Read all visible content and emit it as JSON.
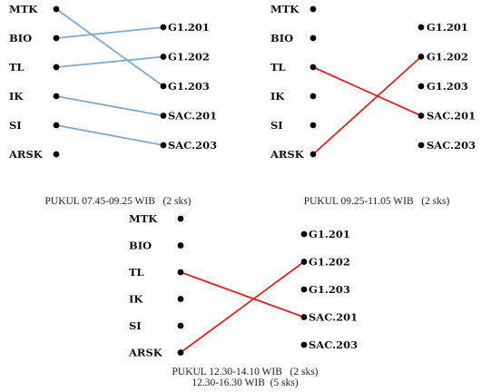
{
  "panels": [
    {
      "left_nodes": [
        "MTK",
        "BIO",
        "TL",
        "IK",
        "SI",
        "ARSK"
      ],
      "right_nodes": [
        "G1.201",
        "G1.202",
        "G1.203",
        "SAC.201",
        "SAC.203"
      ],
      "edges": [
        {
          "from": "MTK",
          "to": "G1.203",
          "color": "#7fa9cf"
        },
        {
          "from": "BIO",
          "to": "G1.201",
          "color": "#7fa9cf"
        },
        {
          "from": "TL",
          "to": "G1.202",
          "color": "#7fa9cf"
        },
        {
          "from": "IK",
          "to": "SAC.201",
          "color": "#7fa9cf"
        },
        {
          "from": "SI",
          "to": "SAC.203",
          "color": "#7fa9cf"
        }
      ],
      "caption": [
        "PUKUL 07.45-09.25 WIB   (2 sks)"
      ]
    },
    {
      "left_nodes": [
        "MTK",
        "BIO",
        "TL",
        "IK",
        "SI",
        "ARSK"
      ],
      "right_nodes": [
        "G1.201",
        "G1.202",
        "G1.203",
        "SAC.201",
        "SAC.203"
      ],
      "edges": [
        {
          "from": "TL",
          "to": "SAC.201",
          "color": "#e02222"
        },
        {
          "from": "ARSK",
          "to": "G1.202",
          "color": "#e02222"
        }
      ],
      "caption": [
        "PUKUL 09.25-11.05 WIB   (2 sks)"
      ]
    },
    {
      "left_nodes": [
        "MTK",
        "BIO",
        "TL",
        "IK",
        "SI",
        "ARSK"
      ],
      "right_nodes": [
        "G1.201",
        "G1.202",
        "G1.203",
        "SAC.201",
        "SAC.203"
      ],
      "edges": [
        {
          "from": "TL",
          "to": "SAC.201",
          "color": "#e02222"
        },
        {
          "from": "ARSK",
          "to": "G1.202",
          "color": "#e02222"
        }
      ],
      "caption": [
        "PUKUL 12.30-14.10 WIB   (2 sks)",
        "12.30-16.30 WIB  (5 sks)"
      ]
    }
  ]
}
